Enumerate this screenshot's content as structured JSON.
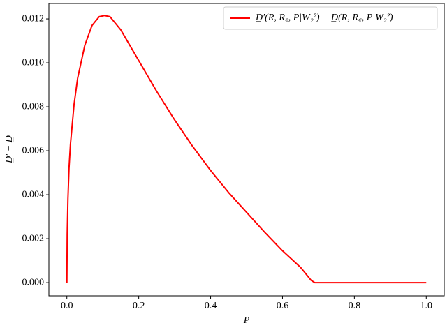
{
  "chart_data": {
    "type": "line",
    "xlabel": "P",
    "ylabel": "D̲′ − D̲",
    "x": [
      0,
      0.001,
      0.003,
      0.006,
      0.01,
      0.02,
      0.03,
      0.05,
      0.07,
      0.09,
      0.105,
      0.12,
      0.15,
      0.2,
      0.25,
      0.3,
      0.35,
      0.4,
      0.45,
      0.5,
      0.55,
      0.6,
      0.65,
      0.67,
      0.68,
      0.69,
      0.75,
      0.8,
      0.9,
      1.0
    ],
    "series": [
      {
        "name": "D̲′(R, R꜀, P|W₂²) − D̲(R, R꜀, P|W₂²)",
        "color": "#ff0000",
        "values": [
          0,
          0.0022,
          0.0038,
          0.0052,
          0.0063,
          0.0081,
          0.0093,
          0.0108,
          0.0117,
          0.0121,
          0.01215,
          0.0121,
          0.0115,
          0.0101,
          0.0087,
          0.0074,
          0.0062,
          0.0051,
          0.0041,
          0.0032,
          0.0023,
          0.00145,
          0.0007,
          0.0003,
          0.0001,
          0,
          0,
          0,
          0,
          0
        ]
      }
    ],
    "xlim": [
      -0.05,
      1.05
    ],
    "ylim": [
      -0.0006,
      0.0127
    ],
    "xticks": [
      {
        "value": 0,
        "label": "0.0"
      },
      {
        "value": 0.2,
        "label": "0.2"
      },
      {
        "value": 0.4,
        "label": "0.4"
      },
      {
        "value": 0.6,
        "label": "0.6"
      },
      {
        "value": 0.8,
        "label": "0.8"
      },
      {
        "value": 1.0,
        "label": "1.0"
      }
    ],
    "yticks": [
      {
        "value": 0,
        "label": "0.000"
      },
      {
        "value": 0.002,
        "label": "0.002"
      },
      {
        "value": 0.004,
        "label": "0.004"
      },
      {
        "value": 0.006,
        "label": "0.006"
      },
      {
        "value": 0.008,
        "label": "0.008"
      },
      {
        "value": 0.01,
        "label": "0.010"
      },
      {
        "value": 0.012,
        "label": "0.012"
      }
    ],
    "legend": "upper right"
  }
}
